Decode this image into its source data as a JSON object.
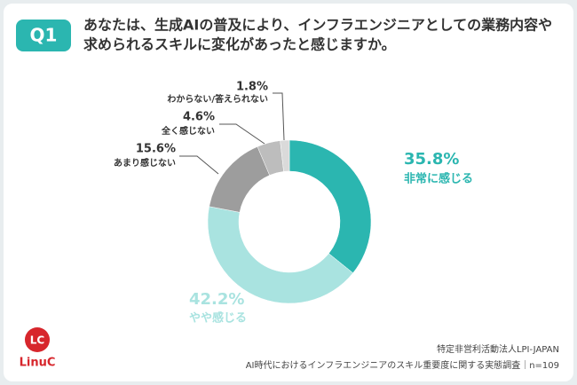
{
  "question_label": "Q1",
  "chart_data": {
    "type": "donut",
    "title": [
      "あなたは、生成AIの普及により、インフラエンジニアとしての業務内容や",
      "求められるスキルに変化があったと感じますか。"
    ],
    "categories": [
      "非常に感じる",
      "やや感じる",
      "あまり感じない",
      "全く感じない",
      "わからない/答えられない"
    ],
    "values": [
      35.8,
      42.2,
      15.6,
      4.6,
      1.8
    ],
    "value_labels": [
      "35.8%",
      "42.2%",
      "15.6%",
      "4.6%",
      "1.8%"
    ],
    "colors": [
      "#2bb6b0",
      "#a9e3e0",
      "#9d9d9d",
      "#bdbdbd",
      "#dadada"
    ]
  },
  "source": [
    "特定非営利活動法人LPI-JAPAN",
    "AI時代におけるインフラエンジニアのスキル重要度に関する実態調査｜n=109"
  ],
  "logo": {
    "mark": "LC",
    "name": "LinuC"
  }
}
